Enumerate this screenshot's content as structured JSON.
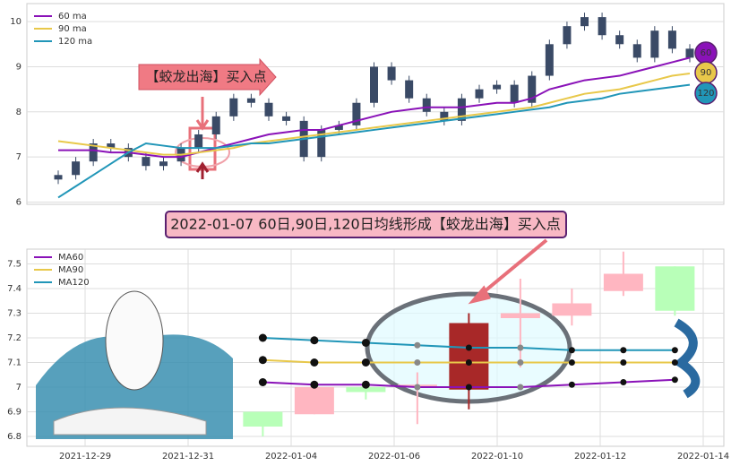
{
  "chart_data": [
    {
      "type": "candlestick",
      "ylim": [
        5.95,
        10.4
      ],
      "yticks": [
        6,
        7,
        8,
        9,
        10
      ],
      "grid": true,
      "legend": "upper left",
      "annotation": "【蛟龙出海】买入点",
      "end_labels": [
        "60",
        "90",
        "120"
      ],
      "ohlc": {
        "color": "#3a4a66",
        "open": [
          6.5,
          6.6,
          6.9,
          7.3,
          7.2,
          7.0,
          6.8,
          6.9,
          7.2,
          7.5,
          7.9,
          8.3,
          8.2,
          7.9,
          7.8,
          7.0,
          7.6,
          7.7,
          8.2,
          9.0,
          8.7,
          8.3,
          8.0,
          7.8,
          8.3,
          8.5,
          8.6,
          8.2,
          8.8,
          9.5,
          9.9,
          10.1,
          9.7,
          9.5,
          9.2,
          9.8,
          9.4
        ],
        "high": [
          6.7,
          7.0,
          7.4,
          7.4,
          7.3,
          7.1,
          7.0,
          7.3,
          7.6,
          8.0,
          8.4,
          8.4,
          8.3,
          8.0,
          7.9,
          7.7,
          7.8,
          8.3,
          9.1,
          9.1,
          8.8,
          8.4,
          8.1,
          8.4,
          8.6,
          8.7,
          8.7,
          8.9,
          9.6,
          10.0,
          10.2,
          10.2,
          9.8,
          9.6,
          9.9,
          9.9,
          9.5
        ],
        "low": [
          6.4,
          6.5,
          6.8,
          7.1,
          6.9,
          6.7,
          6.7,
          6.8,
          7.1,
          7.4,
          7.8,
          8.1,
          7.8,
          7.7,
          6.9,
          6.9,
          7.5,
          7.6,
          8.1,
          8.6,
          8.2,
          7.9,
          7.7,
          7.7,
          8.2,
          8.4,
          8.1,
          8.1,
          8.7,
          9.4,
          9.8,
          9.6,
          9.4,
          9.1,
          9.1,
          9.3,
          9.1
        ],
        "close": [
          6.6,
          6.9,
          7.3,
          7.2,
          7.0,
          6.8,
          6.9,
          7.2,
          7.5,
          7.9,
          8.3,
          8.2,
          7.9,
          7.8,
          7.0,
          7.6,
          7.7,
          8.2,
          9.0,
          8.7,
          8.3,
          8.0,
          7.8,
          8.3,
          8.5,
          8.6,
          8.2,
          8.8,
          9.5,
          9.9,
          10.1,
          9.7,
          9.5,
          9.2,
          9.8,
          9.4,
          9.2
        ]
      },
      "series": [
        {
          "name": "60 ma",
          "color": "#8a12b8",
          "values": [
            7.15,
            7.15,
            7.15,
            7.1,
            7.1,
            7.05,
            7.0,
            7.0,
            7.1,
            7.2,
            7.3,
            7.4,
            7.5,
            7.55,
            7.6,
            7.6,
            7.7,
            7.8,
            7.9,
            8.0,
            8.05,
            8.1,
            8.1,
            8.1,
            8.15,
            8.2,
            8.2,
            8.3,
            8.5,
            8.6,
            8.7,
            8.75,
            8.8,
            8.9,
            9.0,
            9.1,
            9.2
          ]
        },
        {
          "name": "90 ma",
          "color": "#e8c84a",
          "values": [
            7.35,
            7.3,
            7.25,
            7.2,
            7.15,
            7.1,
            7.05,
            7.05,
            7.1,
            7.15,
            7.2,
            7.3,
            7.35,
            7.4,
            7.45,
            7.5,
            7.55,
            7.6,
            7.65,
            7.7,
            7.75,
            7.8,
            7.85,
            7.9,
            7.95,
            8.0,
            8.05,
            8.1,
            8.2,
            8.3,
            8.4,
            8.45,
            8.5,
            8.6,
            8.7,
            8.8,
            8.85
          ]
        },
        {
          "name": "120 ma",
          "color": "#2196b8",
          "values": [
            6.1,
            6.35,
            6.6,
            6.85,
            7.1,
            7.3,
            7.25,
            7.2,
            7.2,
            7.2,
            7.25,
            7.3,
            7.3,
            7.35,
            7.4,
            7.45,
            7.5,
            7.55,
            7.6,
            7.65,
            7.7,
            7.75,
            7.8,
            7.85,
            7.9,
            7.95,
            8.0,
            8.05,
            8.1,
            8.2,
            8.25,
            8.3,
            8.4,
            8.45,
            8.5,
            8.55,
            8.6
          ]
        }
      ]
    },
    {
      "type": "candlestick",
      "title": "2022-01-07 60日,90日,120日均线形成【蛟龙出海】买入点",
      "ylim": [
        6.76,
        7.56
      ],
      "yticks": [
        6.8,
        6.9,
        7.0,
        7.1,
        7.2,
        7.3,
        7.4,
        7.5
      ],
      "grid": true,
      "legend": "upper left",
      "categories": [
        "2021-12-29",
        null,
        "2021-12-31",
        null,
        "2022-01-04",
        null,
        "2022-01-06",
        null,
        "2022-01-10",
        null,
        "2022-01-12",
        null,
        "2022-01-14"
      ],
      "ohlc": {
        "open": [
          null,
          null,
          null,
          6.9,
          6.89,
          7.0,
          7.0,
          6.99,
          7.28,
          7.29,
          7.39,
          7.49,
          null
        ],
        "high": [
          null,
          null,
          null,
          6.9,
          7.01,
          7.0,
          7.06,
          7.3,
          7.44,
          7.4,
          7.55,
          7.49,
          null
        ],
        "low": [
          null,
          null,
          null,
          6.8,
          6.89,
          6.95,
          6.85,
          6.91,
          7.08,
          7.25,
          7.37,
          7.29,
          null
        ],
        "close": [
          null,
          null,
          null,
          6.84,
          7.0,
          6.98,
          7.01,
          7.26,
          7.3,
          7.34,
          7.46,
          7.31,
          null
        ]
      },
      "series": [
        {
          "name": "MA60",
          "color": "#8a12b8",
          "values": [
            null,
            null,
            null,
            7.02,
            7.01,
            7.01,
            7.0,
            7.0,
            7.0,
            7.01,
            7.02,
            7.03,
            null
          ]
        },
        {
          "name": "MA90",
          "color": "#e8c84a",
          "values": [
            null,
            null,
            null,
            7.11,
            7.1,
            7.1,
            7.1,
            7.1,
            7.1,
            7.1,
            7.1,
            7.1,
            null
          ]
        },
        {
          "name": "MA120",
          "color": "#2196b8",
          "values": [
            null,
            null,
            null,
            7.2,
            7.19,
            7.18,
            7.17,
            7.16,
            7.16,
            7.15,
            7.15,
            7.15,
            null
          ]
        }
      ]
    }
  ]
}
